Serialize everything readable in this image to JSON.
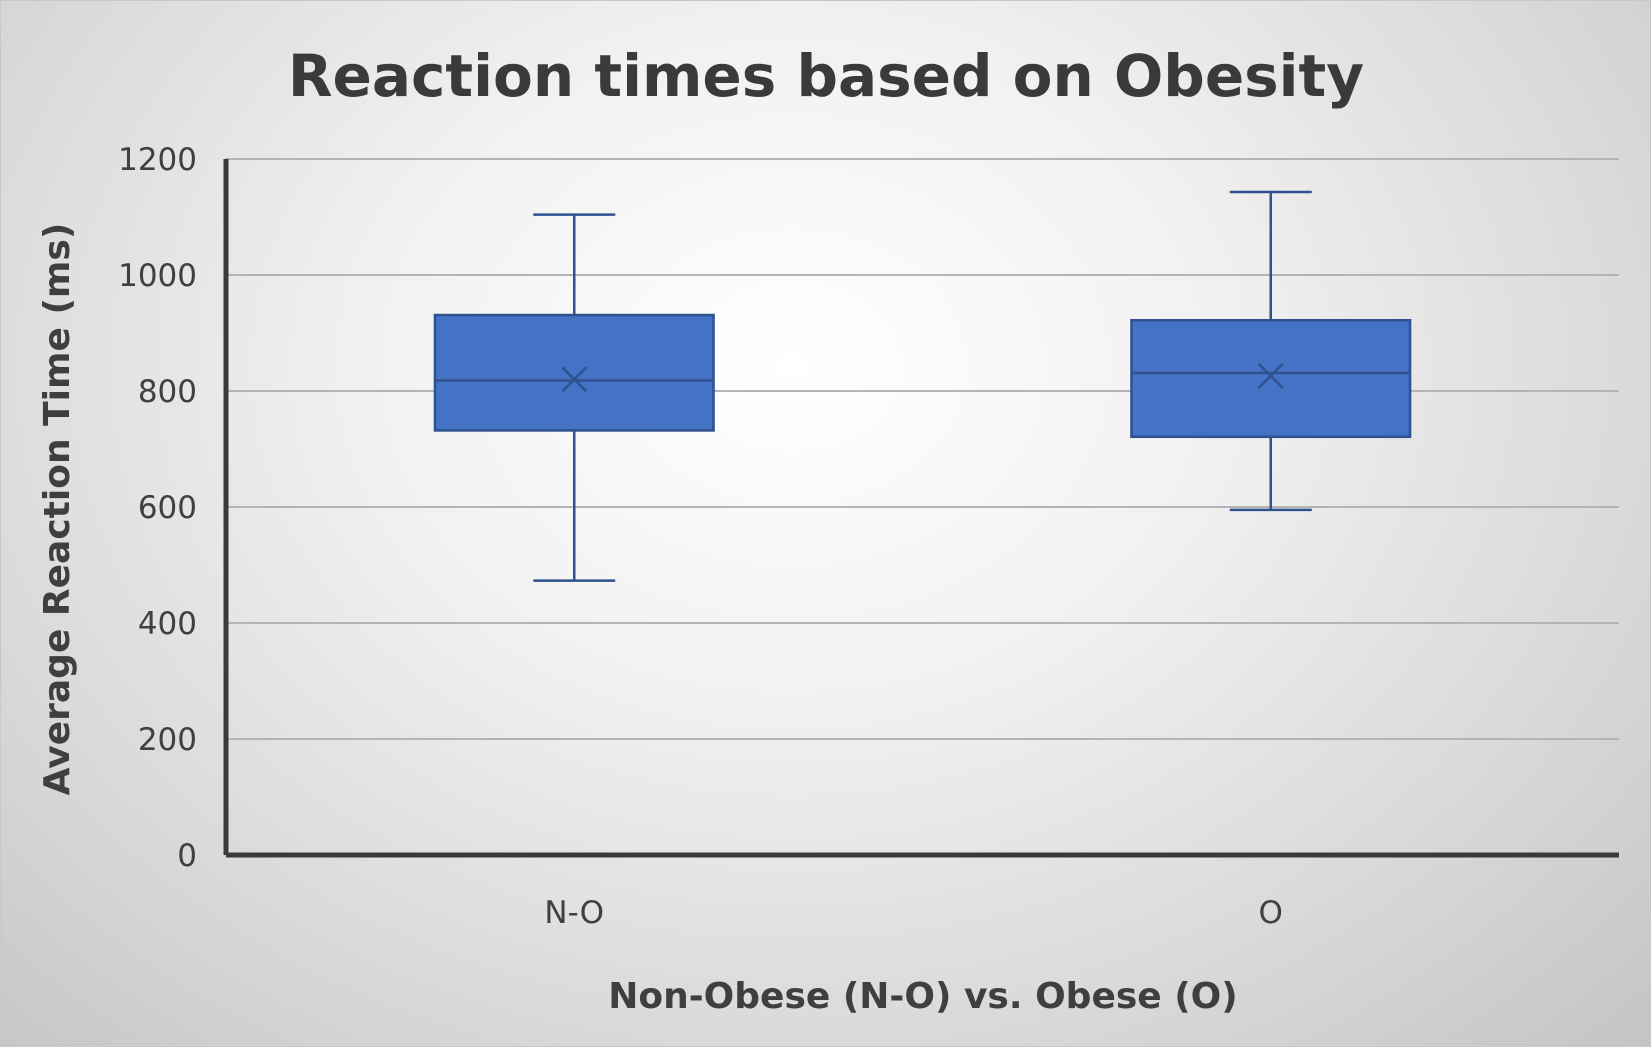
{
  "chart_data": {
    "type": "boxplot",
    "title": "Reaction times based on Obesity",
    "xlabel": "Non-Obese (N-O) vs. Obese (O)",
    "ylabel": "Average Reaction Time (ms)",
    "ylim": [
      0,
      1200
    ],
    "yticks": [
      0,
      200,
      400,
      600,
      800,
      1000,
      1200
    ],
    "grid": true,
    "categories": [
      "N-O",
      "O"
    ],
    "boxes": [
      {
        "category": "N-O",
        "min": 473,
        "q1": 732,
        "median": 818,
        "q3": 931,
        "max": 1104,
        "mean": 820
      },
      {
        "category": "O",
        "min": 595,
        "q1": 721,
        "median": 831,
        "q3": 922,
        "max": 1143,
        "mean": 826
      }
    ],
    "colors": {
      "box_fill": "#4472c4",
      "box_stroke": "#2f528f",
      "axis": "#3a3a3a",
      "grid": "#b4b4b4"
    }
  }
}
